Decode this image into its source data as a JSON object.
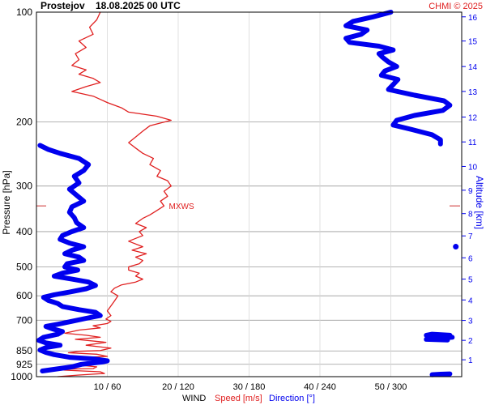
{
  "header": {
    "station": "Prostejov",
    "datetime": "18.08.2025 00 UTC",
    "credit": "CHMI © 2025"
  },
  "chart_data": {
    "type": "line",
    "title": "Prostejov   18.08.2025 00 UTC",
    "ylabel": "Pressure [hPa]",
    "y2label": "Altitude [km]",
    "x_axis_title": "WIND",
    "x_axis_speed_label": "Speed [m/s]",
    "x_axis_direction_label": "Direction [°]",
    "y_scale": "log",
    "ylim": [
      1000,
      100
    ],
    "pressure_ticks": [
      100,
      200,
      300,
      400,
      500,
      600,
      700,
      850,
      925,
      1000
    ],
    "altitude_ticks": [
      1,
      2,
      3,
      4,
      5,
      6,
      7,
      8,
      9,
      10,
      11,
      12,
      13,
      14,
      15,
      16
    ],
    "altitude_tick_pressures": [
      899,
      795,
      701,
      616,
      540,
      472,
      411,
      357,
      308,
      265,
      227,
      194,
      165,
      141,
      120,
      103
    ],
    "x_ticks": [
      {
        "speed": 10,
        "direction": 60,
        "label": "10 / 60"
      },
      {
        "speed": 20,
        "direction": 120,
        "label": "20 / 120"
      },
      {
        "speed": 30,
        "direction": 180,
        "label": "30 / 180"
      },
      {
        "speed": 40,
        "direction": 240,
        "label": "40 / 240"
      },
      {
        "speed": 50,
        "direction": 300,
        "label": "50 / 300"
      }
    ],
    "speed_range": [
      0,
      60
    ],
    "direction_range": [
      0,
      360
    ],
    "max_wind_label": "MXWS",
    "max_wind": {
      "pressure": 340,
      "speed": 18
    },
    "colors": {
      "speed": "#e02020",
      "direction": "#0000ee",
      "grid": "#9a9a9a",
      "marker": "#cc3030"
    },
    "series": [
      {
        "name": "Speed [m/s]",
        "color": "#e02020",
        "points": [
          [
            1000,
            3
          ],
          [
            990,
            6
          ],
          [
            980,
            9.6
          ],
          [
            970,
            9
          ],
          [
            960,
            4
          ],
          [
            955,
            3
          ],
          [
            950,
            8
          ],
          [
            940,
            8.5
          ],
          [
            930,
            6
          ],
          [
            920,
            9.5
          ],
          [
            905,
            10
          ],
          [
            895,
            9.5
          ],
          [
            885,
            7
          ],
          [
            880,
            10
          ],
          [
            868,
            8.5
          ],
          [
            860,
            4.5
          ],
          [
            852,
            6
          ],
          [
            848,
            9
          ],
          [
            835,
            10.5
          ],
          [
            820,
            7
          ],
          [
            805,
            9.8
          ],
          [
            790,
            5.5
          ],
          [
            780,
            9
          ],
          [
            770,
            7
          ],
          [
            760,
            4
          ],
          [
            745,
            6
          ],
          [
            735,
            9
          ],
          [
            725,
            8
          ],
          [
            715,
            10
          ],
          [
            705,
            10.5
          ],
          [
            695,
            9.8
          ],
          [
            680,
            10.5
          ],
          [
            660,
            10
          ],
          [
            640,
            10.5
          ],
          [
            620,
            11
          ],
          [
            600,
            11.5
          ],
          [
            585,
            10.5
          ],
          [
            572,
            11
          ],
          [
            560,
            12
          ],
          [
            550,
            14
          ],
          [
            540,
            15
          ],
          [
            530,
            14
          ],
          [
            520,
            14.5
          ],
          [
            510,
            13
          ],
          [
            500,
            13
          ],
          [
            490,
            14.5
          ],
          [
            480,
            15
          ],
          [
            470,
            14
          ],
          [
            460,
            15.5
          ],
          [
            450,
            13.5
          ],
          [
            440,
            15
          ],
          [
            425,
            13
          ],
          [
            410,
            15
          ],
          [
            400,
            14.5
          ],
          [
            390,
            15.5
          ],
          [
            380,
            14
          ],
          [
            368,
            15
          ],
          [
            360,
            16
          ],
          [
            350,
            17
          ],
          [
            340,
            18
          ],
          [
            330,
            17.5
          ],
          [
            320,
            18.5
          ],
          [
            310,
            18
          ],
          [
            300,
            19
          ],
          [
            290,
            18.5
          ],
          [
            282,
            17
          ],
          [
            272,
            17.5
          ],
          [
            262,
            16
          ],
          [
            252,
            16.5
          ],
          [
            244,
            15
          ],
          [
            236,
            14
          ],
          [
            228,
            13
          ],
          [
            220,
            14
          ],
          [
            212,
            15
          ],
          [
            205,
            16
          ],
          [
            198,
            19
          ],
          [
            193,
            17
          ],
          [
            188,
            13
          ],
          [
            183,
            12
          ],
          [
            177,
            10
          ],
          [
            170,
            8
          ],
          [
            165,
            5
          ],
          [
            160,
            7
          ],
          [
            156,
            9
          ],
          [
            152,
            8
          ],
          [
            148,
            6
          ],
          [
            144,
            7
          ],
          [
            140,
            5
          ],
          [
            135,
            6
          ],
          [
            130,
            5.5
          ],
          [
            125,
            7
          ],
          [
            120,
            6
          ],
          [
            115,
            8
          ],
          [
            110,
            7.5
          ],
          [
            105,
            8.5
          ],
          [
            100,
            9
          ]
        ]
      },
      {
        "name": "Direction [°]",
        "color": "#0000ee",
        "points": [
          [
            965,
            5
          ],
          [
            940,
            30
          ],
          [
            925,
            38
          ],
          [
            912,
            55
          ],
          [
            905,
            60
          ],
          [
            895,
            50
          ],
          [
            885,
            28
          ],
          [
            870,
            15
          ],
          [
            858,
            8
          ],
          [
            845,
            3
          ],
          [
            832,
            8
          ],
          [
            820,
            20
          ],
          [
            808,
            8
          ],
          [
            795,
            2
          ],
          [
            780,
            6
          ],
          [
            765,
            18
          ],
          [
            752,
            22
          ],
          [
            740,
            14
          ],
          [
            728,
            8
          ],
          [
            718,
            18
          ],
          [
            705,
            30
          ],
          [
            692,
            42
          ],
          [
            680,
            54
          ],
          [
            666,
            50
          ],
          [
            655,
            36
          ],
          [
            642,
            22
          ],
          [
            630,
            18
          ],
          [
            618,
            10
          ],
          [
            606,
            6
          ],
          [
            596,
            15
          ],
          [
            586,
            28
          ],
          [
            574,
            42
          ],
          [
            562,
            50
          ],
          [
            550,
            44
          ],
          [
            540,
            30
          ],
          [
            530,
            15
          ],
          [
            520,
            22
          ],
          [
            510,
            35
          ],
          [
            500,
            24
          ],
          [
            490,
            26
          ],
          [
            480,
            40
          ],
          [
            470,
            36
          ],
          [
            460,
            24
          ],
          [
            450,
            30
          ],
          [
            440,
            40
          ],
          [
            430,
            28
          ],
          [
            420,
            20
          ],
          [
            410,
            22
          ],
          [
            400,
            30
          ],
          [
            390,
            40
          ],
          [
            378,
            34
          ],
          [
            366,
            32
          ],
          [
            354,
            28
          ],
          [
            342,
            30
          ],
          [
            330,
            40
          ],
          [
            318,
            34
          ],
          [
            306,
            28
          ],
          [
            294,
            36
          ],
          [
            282,
            32
          ],
          [
            272,
            40
          ],
          [
            262,
            44
          ],
          [
            252,
            36
          ],
          [
            244,
            20
          ],
          [
            238,
            10
          ],
          [
            232,
            3
          ]
        ]
      },
      {
        "name": "Direction [°]",
        "color": "#0000ee",
        "points": [
          [
            100,
            300
          ],
          [
            103,
            285
          ],
          [
            106,
            268
          ],
          [
            109,
            262
          ],
          [
            112,
            280
          ],
          [
            115,
            275
          ],
          [
            118,
            262
          ],
          [
            121,
            265
          ],
          [
            124,
            290
          ],
          [
            127,
            302
          ],
          [
            130,
            290
          ],
          [
            133,
            293
          ],
          [
            137,
            298
          ],
          [
            141,
            305
          ],
          [
            145,
            295
          ],
          [
            149,
            292
          ],
          [
            153,
            306
          ],
          [
            158,
            302
          ],
          [
            163,
            298
          ],
          [
            169,
            320
          ],
          [
            175,
            345
          ],
          [
            180,
            350
          ],
          [
            186,
            344
          ],
          [
            192,
            320
          ],
          [
            198,
            305
          ],
          [
            204,
            302
          ],
          [
            210,
            318
          ],
          [
            217,
            335
          ],
          [
            224,
            342
          ],
          [
            230,
            342
          ]
        ]
      },
      {
        "name": "Direction [°]",
        "color": "#0000ee",
        "points": [
          [
            770,
            350
          ],
          [
            765,
            335
          ],
          [
            770,
            330
          ],
          [
            780,
            352
          ],
          [
            785,
            338
          ],
          [
            790,
            330
          ],
          [
            793,
            348
          ]
        ]
      },
      {
        "name": "Direction [°]",
        "color": "#0000ee",
        "points": [
          [
            988,
            335
          ],
          [
            985,
            342
          ],
          [
            983,
            350
          ]
        ]
      },
      {
        "name": "Direction [°]",
        "color": "#0000ee",
        "points": [
          [
            440,
            355
          ]
        ]
      }
    ]
  }
}
